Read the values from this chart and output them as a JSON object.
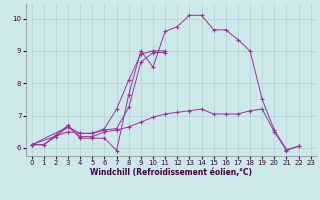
{
  "background_color": "#cce8e8",
  "line_color": "#993399",
  "xlabel": "Windchill (Refroidissement éolien,°C)",
  "xlim": [
    -0.5,
    23.5
  ],
  "ylim": [
    5.75,
    10.45
  ],
  "yticks": [
    6,
    7,
    8,
    9,
    10
  ],
  "xticks": [
    0,
    1,
    2,
    3,
    4,
    5,
    6,
    7,
    8,
    9,
    10,
    11,
    12,
    13,
    14,
    15,
    16,
    17,
    18,
    19,
    20,
    21,
    22,
    23
  ],
  "series": [
    {
      "x": [
        0,
        1,
        2,
        3,
        4,
        5,
        6,
        7,
        8,
        9,
        10,
        11,
        12,
        13,
        14,
        15,
        16,
        17,
        18,
        19,
        20,
        21,
        22
      ],
      "y": [
        6.1,
        6.1,
        6.4,
        6.7,
        6.3,
        6.3,
        6.3,
        5.92,
        7.65,
        9.0,
        8.5,
        9.6,
        9.75,
        10.1,
        10.1,
        9.65,
        9.65,
        9.35,
        9.0,
        7.5,
        6.55,
        5.95,
        6.05
      ]
    },
    {
      "x": [
        0,
        1,
        2,
        3,
        4,
        5,
        6,
        7,
        8,
        9,
        10,
        11,
        12,
        13,
        14,
        15,
        16,
        17,
        18,
        19,
        20,
        21,
        22
      ],
      "y": [
        6.1,
        6.1,
        6.35,
        6.65,
        6.35,
        6.35,
        6.5,
        6.55,
        6.65,
        6.8,
        6.95,
        7.05,
        7.1,
        7.15,
        7.2,
        7.05,
        7.05,
        7.05,
        7.15,
        7.2,
        6.5,
        5.92,
        6.05
      ]
    },
    {
      "x": [
        0,
        3,
        4,
        5,
        6,
        7,
        8,
        9,
        10,
        11
      ],
      "y": [
        6.1,
        6.65,
        6.45,
        6.45,
        6.6,
        7.2,
        8.1,
        8.9,
        9.0,
        9.0
      ]
    },
    {
      "x": [
        0,
        3,
        4,
        5,
        6,
        7,
        8,
        9,
        10,
        11
      ],
      "y": [
        6.1,
        6.5,
        6.45,
        6.45,
        6.55,
        6.6,
        7.25,
        8.65,
        8.95,
        8.95
      ]
    }
  ]
}
